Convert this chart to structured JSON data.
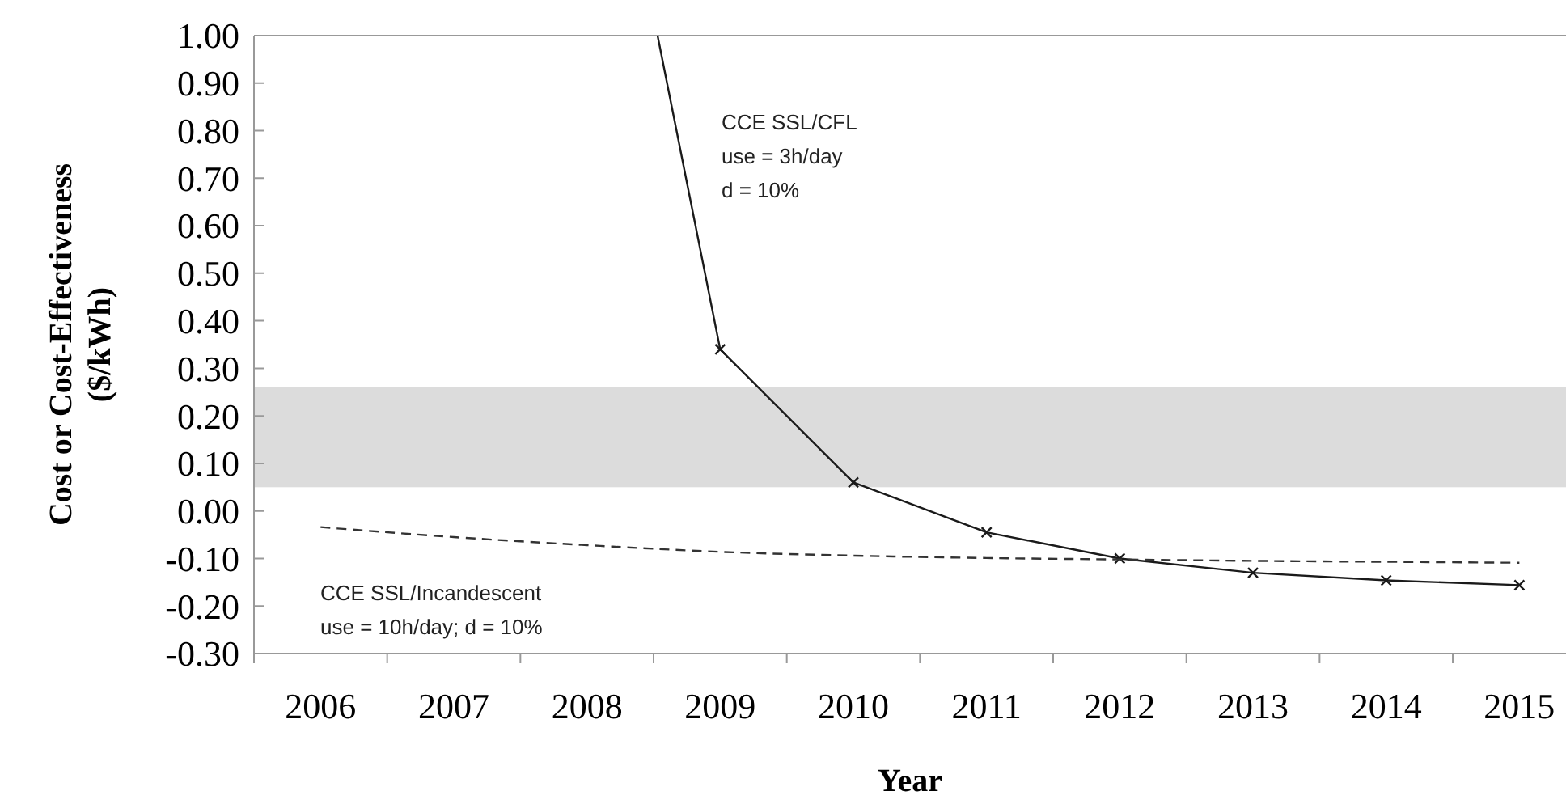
{
  "chart_data": {
    "type": "line",
    "xlabel": "Year",
    "ylabel": "Cost or Cost-Effectiveness\n($/kWh)",
    "xlim": [
      2005.5,
      2015.35
    ],
    "xticks": [
      2006,
      2007,
      2008,
      2009,
      2010,
      2011,
      2012,
      2013,
      2014,
      2015
    ],
    "ylim": [
      -0.3,
      1.0
    ],
    "yticks": [
      {
        "value": -0.3,
        "label": "-0.30"
      },
      {
        "value": -0.2,
        "label": "-0.20"
      },
      {
        "value": -0.1,
        "label": "-0.10"
      },
      {
        "value": 0,
        "label": "0.00"
      },
      {
        "value": 0.1,
        "label": "0.10"
      },
      {
        "value": 0.2,
        "label": "0.20"
      },
      {
        "value": 0.3,
        "label": "0.30"
      },
      {
        "value": 0.4,
        "label": "0.40"
      },
      {
        "value": 0.5,
        "label": "0.50"
      },
      {
        "value": 0.6,
        "label": "0.60"
      },
      {
        "value": 0.7,
        "label": "0.70"
      },
      {
        "value": 0.8,
        "label": "0.80"
      },
      {
        "value": 0.9,
        "label": "0.90"
      },
      {
        "value": 1.0,
        "label": "1.00"
      }
    ],
    "grid": false,
    "series": [
      {
        "color": "#1a1a1a",
        "marker": "cross",
        "line_style": "solid",
        "x": [
          2008.53,
          2009,
          2010,
          2011,
          2012,
          2013,
          2014,
          2015
        ],
        "values": [
          1.0,
          0.34,
          0.06,
          -0.045,
          -0.1,
          -0.13,
          -0.146,
          -0.156
        ]
      },
      {
        "color": "#333333",
        "marker": "none",
        "line_style": "dashed",
        "x": [
          2006,
          2007,
          2008,
          2009,
          2010,
          2011,
          2012,
          2013,
          2014,
          2015
        ],
        "values": [
          -0.034,
          -0.055,
          -0.072,
          -0.086,
          -0.094,
          -0.099,
          -0.102,
          -0.105,
          -0.107,
          -0.109
        ]
      }
    ],
    "bands": [
      {
        "axis": "y",
        "from": 0.05,
        "to": 0.26,
        "color": "#dcdcdc"
      }
    ],
    "annotations": [
      "CCE SSL/CFL\nuse = 3h/day\nd = 10%",
      "CCE SSL/Incandescent\nuse = 10h/day; d = 10%"
    ]
  }
}
